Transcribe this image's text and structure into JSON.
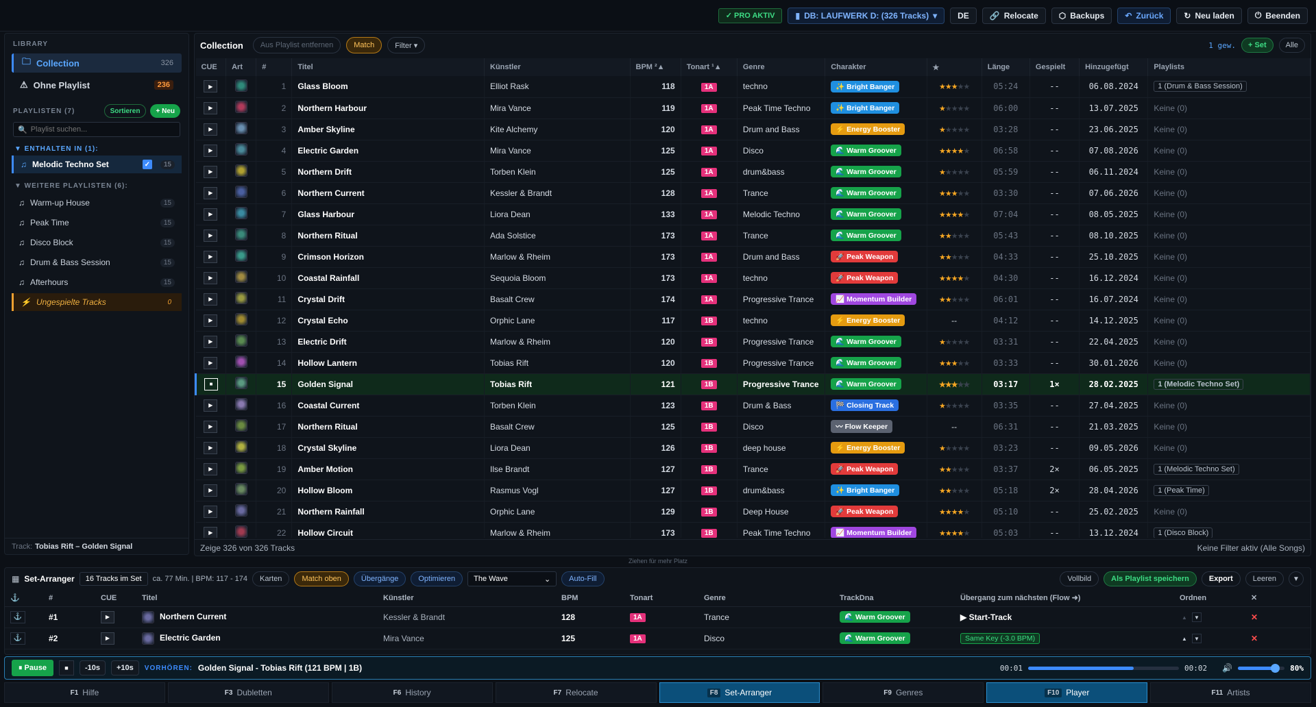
{
  "topbar": {
    "pro": "✓ PRO AKTIV",
    "db": "DB: LAUFWERK D: (326 Tracks)",
    "lang": "DE",
    "relocate": "Relocate",
    "backups": "Backups",
    "back": "Zurück",
    "reload": "Neu laden",
    "quit": "Beenden"
  },
  "sidebar": {
    "library_label": "LIBRARY",
    "library": [
      {
        "label": "Collection",
        "count": "326"
      },
      {
        "label": "Ohne Playlist",
        "count": "236"
      }
    ],
    "playlists_label": "PLAYLISTEN (7)",
    "sort": "Sortieren",
    "new": "+ Neu",
    "search_placeholder": "Playlist suchen...",
    "contained_label": "▼ ENTHALTEN IN (1):",
    "contained": [
      {
        "label": "Melodic Techno Set",
        "count": "15"
      }
    ],
    "more_label": "▼ WEITERE PLAYLISTEN (6):",
    "more": [
      {
        "label": "Warm-up House",
        "count": "15"
      },
      {
        "label": "Peak Time",
        "count": "15"
      },
      {
        "label": "Disco Block",
        "count": "15"
      },
      {
        "label": "Drum & Bass Session",
        "count": "15"
      },
      {
        "label": "Afterhours",
        "count": "15"
      },
      {
        "label": "Ungespielte Tracks",
        "count": "0"
      }
    ],
    "track_label": "Track:",
    "track_value": "Tobias Rift – Golden Signal"
  },
  "collection": {
    "title": "Collection",
    "remove": "Aus Playlist entfernen",
    "match": "Match",
    "filter": "Filter ▾",
    "selected": "1 gew.",
    "set": "+ Set",
    "all": "Alle",
    "columns": [
      "CUE",
      "Art",
      "#",
      "Titel",
      "Künstler",
      "BPM ²▲",
      "Tonart ¹▲",
      "Genre",
      "Charakter",
      "★",
      "Länge",
      "Gespielt",
      "Hinzugefügt",
      "Playlists"
    ],
    "rows": [
      {
        "n": "1",
        "title": "Glass Bloom",
        "artist": "Elliot Rask",
        "bpm": "118",
        "key": "1A",
        "genre": "techno",
        "chr": "✨ Bright Banger",
        "stars": 3,
        "len": "05:24",
        "played": "--",
        "added": "06.08.2024",
        "pl": "1 (Drum & Bass Session)"
      },
      {
        "n": "2",
        "title": "Northern Harbour",
        "artist": "Mira Vance",
        "bpm": "119",
        "key": "1A",
        "genre": "Peak Time Techno",
        "chr": "✨ Bright Banger",
        "stars": 1,
        "len": "06:00",
        "played": "--",
        "added": "13.07.2025",
        "pl": "Keine (0)"
      },
      {
        "n": "3",
        "title": "Amber Skyline",
        "artist": "Kite Alchemy",
        "bpm": "120",
        "key": "1A",
        "genre": "Drum and Bass",
        "chr": "⚡ Energy Booster",
        "stars": 1,
        "len": "03:28",
        "played": "--",
        "added": "23.06.2025",
        "pl": "Keine (0)"
      },
      {
        "n": "4",
        "title": "Electric Garden",
        "artist": "Mira Vance",
        "bpm": "125",
        "key": "1A",
        "genre": "Disco",
        "chr": "🌊 Warm Groover",
        "stars": 4,
        "len": "06:58",
        "played": "--",
        "added": "07.08.2026",
        "pl": "Keine (0)"
      },
      {
        "n": "5",
        "title": "Northern Drift",
        "artist": "Torben Klein",
        "bpm": "125",
        "key": "1A",
        "genre": "drum&bass",
        "chr": "🌊 Warm Groover",
        "stars": 1,
        "len": "05:59",
        "played": "--",
        "added": "06.11.2024",
        "pl": "Keine (0)"
      },
      {
        "n": "6",
        "title": "Northern Current",
        "artist": "Kessler & Brandt",
        "bpm": "128",
        "key": "1A",
        "genre": "Trance",
        "chr": "🌊 Warm Groover",
        "stars": 3,
        "len": "03:30",
        "played": "--",
        "added": "07.06.2026",
        "pl": "Keine (0)"
      },
      {
        "n": "7",
        "title": "Glass Harbour",
        "artist": "Liora Dean",
        "bpm": "133",
        "key": "1A",
        "genre": "Melodic Techno",
        "chr": "🌊 Warm Groover",
        "stars": 4,
        "len": "07:04",
        "played": "--",
        "added": "08.05.2025",
        "pl": "Keine (0)"
      },
      {
        "n": "8",
        "title": "Northern Ritual",
        "artist": "Ada Solstice",
        "bpm": "173",
        "key": "1A",
        "genre": "Trance",
        "chr": "🌊 Warm Groover",
        "stars": 2,
        "len": "05:43",
        "played": "--",
        "added": "08.10.2025",
        "pl": "Keine (0)"
      },
      {
        "n": "9",
        "title": "Crimson Horizon",
        "artist": "Marlow & Rheim",
        "bpm": "173",
        "key": "1A",
        "genre": "Drum and Bass",
        "chr": "🚀 Peak Weapon",
        "stars": 2,
        "len": "04:33",
        "played": "--",
        "added": "25.10.2025",
        "pl": "Keine (0)"
      },
      {
        "n": "10",
        "title": "Coastal Rainfall",
        "artist": "Sequoia Bloom",
        "bpm": "173",
        "key": "1A",
        "genre": "techno",
        "chr": "🚀 Peak Weapon",
        "stars": 4,
        "len": "04:30",
        "played": "--",
        "added": "16.12.2024",
        "pl": "Keine (0)"
      },
      {
        "n": "11",
        "title": "Crystal Drift",
        "artist": "Basalt Crew",
        "bpm": "174",
        "key": "1A",
        "genre": "Progressive Trance",
        "chr": "📈 Momentum Builder",
        "stars": 2,
        "len": "06:01",
        "played": "--",
        "added": "16.07.2024",
        "pl": "Keine (0)"
      },
      {
        "n": "12",
        "title": "Crystal Echo",
        "artist": "Orphic Lane",
        "bpm": "117",
        "key": "1B",
        "genre": "techno",
        "chr": "⚡ Energy Booster",
        "stars": 0,
        "len": "04:12",
        "played": "--",
        "added": "14.12.2025",
        "pl": "Keine (0)"
      },
      {
        "n": "13",
        "title": "Electric Drift",
        "artist": "Marlow & Rheim",
        "bpm": "120",
        "key": "1B",
        "genre": "Progressive Trance",
        "chr": "🌊 Warm Groover",
        "stars": 1,
        "len": "03:31",
        "played": "--",
        "added": "22.04.2025",
        "pl": "Keine (0)"
      },
      {
        "n": "14",
        "title": "Hollow Lantern",
        "artist": "Tobias Rift",
        "bpm": "120",
        "key": "1B",
        "genre": "Progressive Trance",
        "chr": "🌊 Warm Groover",
        "stars": 3,
        "len": "03:33",
        "played": "--",
        "added": "30.01.2026",
        "pl": "Keine (0)"
      },
      {
        "n": "15",
        "title": "Golden Signal",
        "artist": "Tobias Rift",
        "bpm": "121",
        "key": "1B",
        "genre": "Progressive Trance",
        "chr": "🌊 Warm Groover",
        "stars": 3,
        "len": "03:17",
        "played": "1×",
        "added": "28.02.2025",
        "pl": "1 (Melodic Techno Set)",
        "sel": true
      },
      {
        "n": "16",
        "title": "Coastal Current",
        "artist": "Torben Klein",
        "bpm": "123",
        "key": "1B",
        "genre": "Drum & Bass",
        "chr": "🏁 Closing Track",
        "stars": 1,
        "len": "03:35",
        "played": "--",
        "added": "27.04.2025",
        "pl": "Keine (0)"
      },
      {
        "n": "17",
        "title": "Northern Ritual",
        "artist": "Basalt Crew",
        "bpm": "125",
        "key": "1B",
        "genre": "Disco",
        "chr": "〰 Flow Keeper",
        "stars": 0,
        "len": "06:31",
        "played": "--",
        "added": "21.03.2025",
        "pl": "Keine (0)"
      },
      {
        "n": "18",
        "title": "Crystal Skyline",
        "artist": "Liora Dean",
        "bpm": "126",
        "key": "1B",
        "genre": "deep house",
        "chr": "⚡ Energy Booster",
        "stars": 1,
        "len": "03:23",
        "played": "--",
        "added": "09.05.2026",
        "pl": "Keine (0)"
      },
      {
        "n": "19",
        "title": "Amber Motion",
        "artist": "Ilse Brandt",
        "bpm": "127",
        "key": "1B",
        "genre": "Trance",
        "chr": "🚀 Peak Weapon",
        "stars": 2,
        "len": "03:37",
        "played": "2×",
        "added": "06.05.2025",
        "pl": "1 (Melodic Techno Set)"
      },
      {
        "n": "20",
        "title": "Hollow Bloom",
        "artist": "Rasmus Vogl",
        "bpm": "127",
        "key": "1B",
        "genre": "drum&bass",
        "chr": "✨ Bright Banger",
        "stars": 2,
        "len": "05:18",
        "played": "2×",
        "added": "28.04.2026",
        "pl": "1 (Peak Time)"
      },
      {
        "n": "21",
        "title": "Northern Rainfall",
        "artist": "Orphic Lane",
        "bpm": "129",
        "key": "1B",
        "genre": "Deep House",
        "chr": "🚀 Peak Weapon",
        "stars": 4,
        "len": "05:10",
        "played": "--",
        "added": "25.02.2025",
        "pl": "Keine (0)"
      },
      {
        "n": "22",
        "title": "Hollow Circuit",
        "artist": "Marlow & Rheim",
        "bpm": "173",
        "key": "1B",
        "genre": "Peak Time Techno",
        "chr": "📈 Momentum Builder",
        "stars": 4,
        "len": "05:03",
        "played": "--",
        "added": "13.12.2024",
        "pl": "1 (Disco Block)"
      }
    ],
    "footer_left": "Zeige 326 von 326 Tracks",
    "footer_right": "Keine Filter aktiv (Alle Songs)",
    "drag_hint": "Ziehen für mehr Platz"
  },
  "colors": {
    "Bright Banger": "#1f8fe0",
    "Energy Booster": "#e59b10",
    "Warm Groover": "#16a34a",
    "Peak Weapon": "#e23b3b",
    "Momentum Builder": "#a047e0",
    "Closing Track": "#2a6fe0",
    "Flow Keeper": "#5b6270"
  },
  "arranger": {
    "title": "Set-Arranger",
    "count": "16 Tracks im Set",
    "info": "ca. 77 Min. | BPM: 117 - 174",
    "cards": "Karten",
    "match_top": "Match oben",
    "transitions": "Übergänge",
    "optimize": "Optimieren",
    "wave": "The Wave",
    "autofill": "Auto-Fill",
    "fullscreen": "Vollbild",
    "save": "Als Playlist speichern",
    "export": "Export",
    "clear": "Leeren",
    "columns": [
      "#",
      "CUE",
      "Titel",
      "Künstler",
      "BPM",
      "Tonart",
      "Genre",
      "TrackDna",
      "Übergang zum nächsten (Flow ➜)",
      "Ordnen"
    ],
    "rows": [
      {
        "n": "#1",
        "title": "Northern Current",
        "artist": "Kessler & Brandt",
        "bpm": "128",
        "key": "1A",
        "genre": "Trance",
        "dna": "🌊 Warm Groover",
        "flow": "▶ Start-Track"
      },
      {
        "n": "#2",
        "title": "Electric Garden",
        "artist": "Mira Vance",
        "bpm": "125",
        "key": "1A",
        "genre": "Disco",
        "dna": "🌊 Warm Groover",
        "flow": "Same Key (-3.0 BPM)"
      }
    ]
  },
  "player": {
    "pause": "⏸ Pause",
    "back10": "-10s",
    "fwd10": "+10s",
    "label": "VORHÖREN:",
    "now": "Golden Signal - Tobias Rift (121 BPM | 1B)",
    "pos": "00:01",
    "dur": "00:02",
    "progress": 0.7,
    "volume": "80%",
    "volume_level": 0.8
  },
  "fkeys": [
    {
      "k": "F1",
      "l": "Hilfe"
    },
    {
      "k": "F3",
      "l": "Dubletten"
    },
    {
      "k": "F6",
      "l": "History"
    },
    {
      "k": "F7",
      "l": "Relocate"
    },
    {
      "k": "F8",
      "l": "Set-Arranger",
      "on": true
    },
    {
      "k": "F9",
      "l": "Genres"
    },
    {
      "k": "F10",
      "l": "Player",
      "on": true
    },
    {
      "k": "F11",
      "l": "Artists"
    }
  ]
}
